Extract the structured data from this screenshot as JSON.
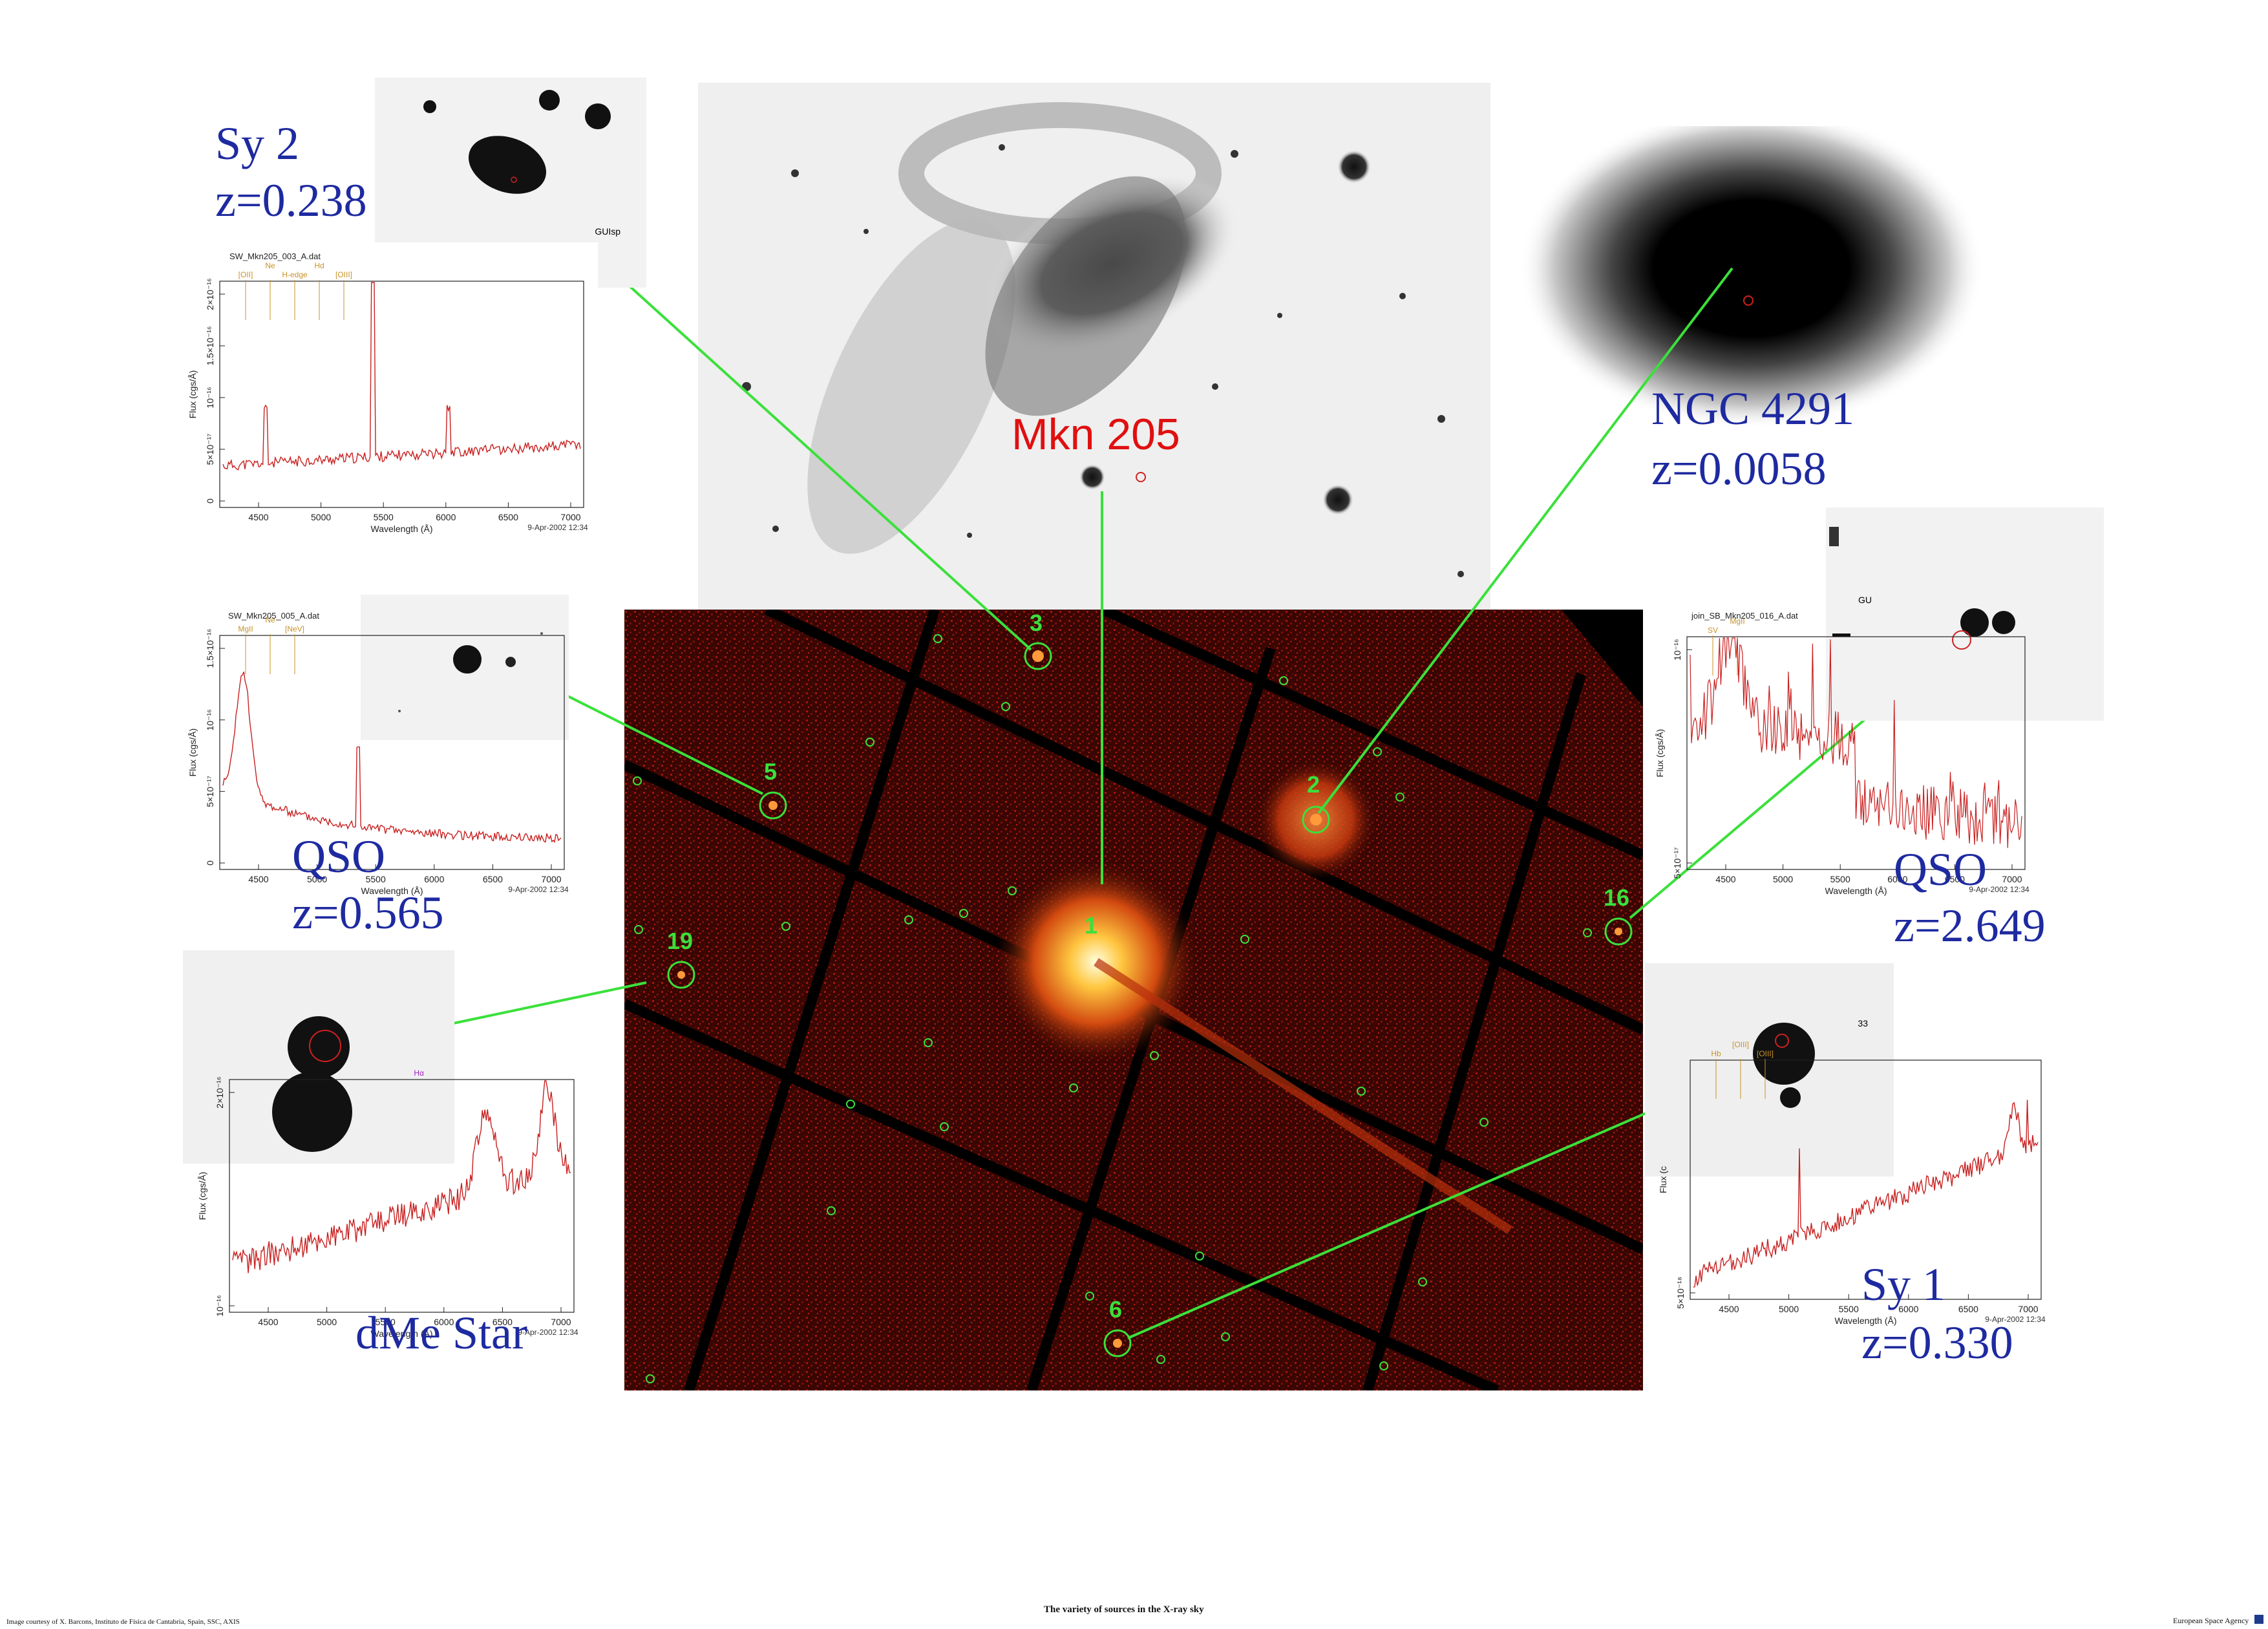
{
  "optical": {
    "label": "Mkn 205"
  },
  "xray": {
    "sources": [
      {
        "id": "1",
        "label": "1"
      },
      {
        "id": "2",
        "label": "2"
      },
      {
        "id": "3",
        "label": "3"
      },
      {
        "id": "5",
        "label": "5"
      },
      {
        "id": "6",
        "label": "6"
      },
      {
        "id": "16",
        "label": "16"
      },
      {
        "id": "19",
        "label": "19"
      }
    ]
  },
  "objects": {
    "sy2": {
      "type": "Sy 2",
      "z": "z=0.238",
      "thumb_tag": "GUIsp",
      "spec_file": "SW_Mkn205_003_A.dat",
      "lines": [
        "[OII]",
        "Ne",
        "H-edge",
        "Hd",
        "[OIII]"
      ],
      "xticks": [
        "4500",
        "5000",
        "5500",
        "6000",
        "6500",
        "7000"
      ],
      "yticks": [
        "0",
        "5×10⁻¹⁷",
        "10⁻¹⁶",
        "1.5×10⁻¹⁶",
        "2×10⁻¹⁶"
      ],
      "xlabel": "Wavelength (Å)",
      "ylabel": "Flux (cgs/Å)",
      "stamp": "9-Apr-2002 12:34"
    },
    "qso1": {
      "type": "QSO",
      "z": "z=0.565",
      "thumb_tag": "G",
      "spec_file": "SW_Mkn205_005_A.dat",
      "lines": [
        "MgII",
        "Ne",
        "[NeV]"
      ],
      "xticks": [
        "4500",
        "5000",
        "5500",
        "6000",
        "6500",
        "7000"
      ],
      "yticks": [
        "0",
        "5×10⁻¹⁷",
        "10⁻¹⁶",
        "1.5×10⁻¹⁶"
      ],
      "xlabel": "Wavelength (Å)",
      "ylabel": "Flux (cgs/Å)",
      "stamp": "9-Apr-2002 12:34"
    },
    "dme": {
      "type": "dMe Star",
      "spec_line": "Hα",
      "xticks": [
        "4500",
        "5000",
        "5500",
        "6000",
        "6500",
        "7000"
      ],
      "yticks": [
        "10⁻¹⁶",
        "2×10⁻¹⁶"
      ],
      "xlabel": "Wavelength (Å)",
      "ylabel": "Flux (cgs/Å)",
      "stamp": "9-Apr-2002 12:34"
    },
    "ngc4291": {
      "type": "NGC 4291",
      "z": "z=0.0058"
    },
    "qso2": {
      "type": "QSO",
      "z": "z=2.649",
      "thumb_tag": "GU",
      "spec_file": "join_SB_Mkn205_016_A.dat",
      "lines": [
        "SV",
        "MgII"
      ],
      "xticks": [
        "4500",
        "5000",
        "5500",
        "6000",
        "6500",
        "7000"
      ],
      "yticks": [
        "5×10⁻¹⁷",
        "10⁻¹⁶"
      ],
      "xlabel": "Wavelength (Å)",
      "ylabel": "Flux (cgs/Å)",
      "stamp": "9-Apr-2002 12:34"
    },
    "sy1": {
      "type": "Sy 1",
      "z": "z=0.330",
      "thumb_tag": "33",
      "lines": [
        "Hb",
        "[OIII]",
        "[OIII]"
      ],
      "xticks": [
        "4500",
        "5000",
        "5500",
        "6000",
        "6500",
        "7000"
      ],
      "yticks": [
        "5×10⁻¹⁸"
      ],
      "xlabel": "Wavelength (Å)",
      "ylabel": "Flux (c",
      "stamp": "9-Apr-2002 12:34"
    }
  },
  "footer": {
    "left": "Image courtesy of X. Barcons, Instituto de Física de Cantabria, Spain, SSC, AXIS",
    "center": "The variety of sources in the X-ray sky",
    "right": "European Space Agency"
  },
  "colors": {
    "connector": "#3be03b",
    "label": "#1e2aa0",
    "xray_bg": "#000000",
    "xray_noise": "#8a1208",
    "mkn_label": "#e01010",
    "spectrum": "#c82020"
  }
}
